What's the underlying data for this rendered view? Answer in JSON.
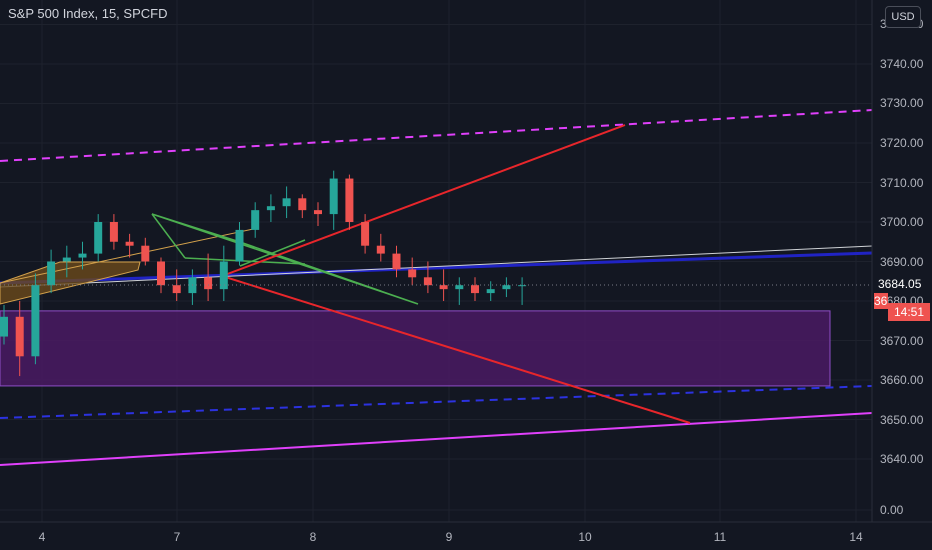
{
  "header": {
    "symbol_label": "S&P 500 Index, 15, SPCFD",
    "currency": "USD"
  },
  "price_scale": {
    "ticks": [
      "3750.00",
      "3740.00",
      "3730.00",
      "3720.00",
      "3710.00",
      "3700.00",
      "3690.00",
      "3680.00",
      "3670.00",
      "3660.00",
      "3650.00",
      "3640.00",
      "0.00"
    ],
    "last_price": "3684.05",
    "countdown": "14:51",
    "countdown_prefix": "36"
  },
  "time_axis": {
    "ticks": [
      "4",
      "7",
      "8",
      "9",
      "10",
      "11",
      "14"
    ]
  },
  "colors": {
    "background": "#131722",
    "grid": "#1e222d",
    "up": "#26a69a",
    "down": "#ef5350",
    "magenta": "#e040fb",
    "blue": "#1e22c8",
    "red": "#e8262b",
    "green": "#4caf50",
    "orange": "#d4a24c",
    "zone_fill": "#4a1a63",
    "zone_border": "#8e4ec6"
  },
  "chart_data": {
    "type": "candlestick",
    "title": "S&P 500 Index, 15, SPCFD",
    "ylim": [
      3634,
      3752
    ],
    "x": [
      "Dec 4 11:00",
      "Dec 4 12:00",
      "Dec 4 13:00",
      "Dec 4 14:00",
      "Dec 4 15:00",
      "Dec 4 16:00",
      "Dec 7 09:30",
      "Dec 7 10:00",
      "Dec 7 11:00",
      "Dec 7 12:00",
      "Dec 7 13:00",
      "Dec 7 14:00",
      "Dec 7 15:00",
      "Dec 7 16:00",
      "Dec 7 17:00",
      "Dec 8 09:30",
      "Dec 8 10:00",
      "Dec 8 11:00",
      "Dec 8 12:00",
      "Dec 8 13:00",
      "Dec 8 14:00",
      "Dec 8 15:00",
      "Dec 8 16:00",
      "Dec 8 17:00",
      "Dec 9 09:30",
      "Dec 9 10:00",
      "Dec 9 11:00",
      "Dec 9 12:00",
      "Dec 9 13:00",
      "Dec 9 14:00",
      "Dec 9 15:00",
      "Dec 9 16:00",
      "Dec 9 17:00",
      "Dec 9 18:00"
    ],
    "ohlc": [
      [
        3671,
        3679,
        3669,
        3676
      ],
      [
        3676,
        3680,
        3661,
        3666
      ],
      [
        3666,
        3687,
        3664,
        3684
      ],
      [
        3684,
        3693,
        3682,
        3690
      ],
      [
        3690,
        3694,
        3686,
        3691
      ],
      [
        3691,
        3695,
        3688,
        3692
      ],
      [
        3692,
        3702,
        3690,
        3700
      ],
      [
        3700,
        3702,
        3693,
        3695
      ],
      [
        3695,
        3697,
        3691,
        3694
      ],
      [
        3694,
        3696,
        3689,
        3690
      ],
      [
        3690,
        3691,
        3682,
        3684
      ],
      [
        3684,
        3688,
        3680,
        3682
      ],
      [
        3682,
        3688,
        3679,
        3686
      ],
      [
        3686,
        3692,
        3680,
        3683
      ],
      [
        3683,
        3694,
        3680,
        3690
      ],
      [
        3690,
        3700,
        3689,
        3698
      ],
      [
        3698,
        3705,
        3696,
        3703
      ],
      [
        3703,
        3707,
        3700,
        3704
      ],
      [
        3704,
        3709,
        3701,
        3706
      ],
      [
        3706,
        3707,
        3701,
        3703
      ],
      [
        3703,
        3705,
        3699,
        3702
      ],
      [
        3702,
        3713,
        3698,
        3711
      ],
      [
        3711,
        3712,
        3698,
        3700
      ],
      [
        3700,
        3702,
        3692,
        3694
      ],
      [
        3694,
        3697,
        3690,
        3692
      ],
      [
        3692,
        3694,
        3686,
        3688
      ],
      [
        3688,
        3691,
        3684,
        3686
      ],
      [
        3686,
        3690,
        3682,
        3684
      ],
      [
        3684,
        3688,
        3680,
        3683
      ],
      [
        3683,
        3686,
        3679,
        3684
      ],
      [
        3684,
        3686,
        3680,
        3682
      ],
      [
        3682,
        3685,
        3680,
        3683
      ],
      [
        3683,
        3686,
        3681,
        3684
      ],
      [
        3684,
        3686,
        3679,
        3684
      ]
    ],
    "last": 3684.05,
    "zones": [
      {
        "from": 3658.5,
        "to": 3677.5,
        "color": "#4a1a63"
      }
    ]
  }
}
